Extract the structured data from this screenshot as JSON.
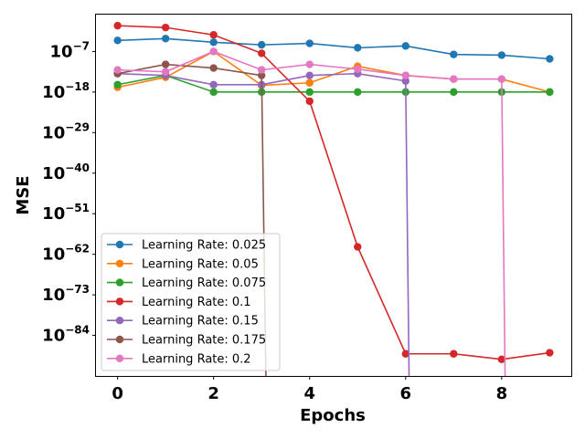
{
  "chart_data": {
    "type": "line",
    "title": "",
    "xlabel": "Epochs",
    "ylabel": "MSE",
    "yscale": "log",
    "x": [
      0,
      1,
      2,
      3,
      4,
      5,
      6,
      7,
      8,
      9
    ],
    "xlim": [
      -0.45,
      9.45
    ],
    "ylim_exp": [
      -95,
      3
    ],
    "xticks": [
      0,
      2,
      4,
      6,
      8
    ],
    "xtick_labels": [
      "0",
      "2",
      "4",
      "6",
      "8"
    ],
    "yticks_exp": [
      -7,
      -18,
      -29,
      -40,
      -51,
      -62,
      -73,
      -84
    ],
    "ytick_base": "10",
    "ytick_exp_labels": [
      "−7",
      "−18",
      "−29",
      "−40",
      "−51",
      "−62",
      "−73",
      "−84"
    ],
    "legend_position": "lower-left",
    "grid": false,
    "series": [
      {
        "name": "Learning Rate: 0.025",
        "color": "#1f77b4",
        "log10_values": [
          -4,
          -3.5,
          -4.5,
          -5.2,
          -4.8,
          -6,
          -5.5,
          -7.8,
          -8,
          -9
        ]
      },
      {
        "name": "Learning Rate: 0.05",
        "color": "#ff7f0e",
        "log10_values": [
          -16.7,
          -14,
          -7,
          -16.2,
          -15.5,
          -11,
          -13.5,
          -14.5,
          -14.5,
          -18
        ]
      },
      {
        "name": "Learning Rate: 0.075",
        "color": "#2ca02c",
        "log10_values": [
          -16,
          -13.5,
          -18,
          -18,
          -18,
          -18,
          -18,
          -18,
          -18,
          -18
        ]
      },
      {
        "name": "Learning Rate: 0.1",
        "color": "#d62728",
        "log10_values": [
          0,
          -0.5,
          -2.5,
          -7.5,
          -20.5,
          -60,
          -89,
          -89,
          -90.5,
          -88.7
        ]
      },
      {
        "name": "Learning Rate: 0.15",
        "color": "#9467bd",
        "log10_values": [
          -13,
          -13.5,
          -16,
          -16,
          -13.5,
          -13,
          -15,
          null,
          null,
          null
        ]
      },
      {
        "name": "Learning Rate: 0.175",
        "color": "#8c564b",
        "log10_values": [
          -13,
          -10.5,
          -11.5,
          -13.5,
          null,
          null,
          null,
          null,
          null,
          null
        ]
      },
      {
        "name": "Learning Rate: 0.2",
        "color": "#e377c2",
        "log10_values": [
          -12,
          -12.5,
          -7,
          -12,
          -10.5,
          -11.8,
          -13.5,
          -14.5,
          -14.5,
          null
        ]
      }
    ],
    "drop_lines": [
      {
        "series": 5,
        "from_x": 3,
        "to_x": 3.1
      },
      {
        "series": 4,
        "from_x": 6,
        "to_x": 6.08
      },
      {
        "series": 6,
        "from_x": 8,
        "to_x": 8.08
      }
    ]
  }
}
